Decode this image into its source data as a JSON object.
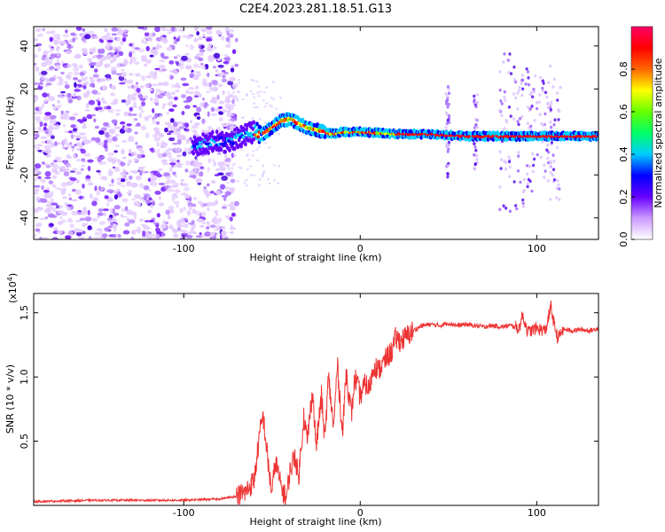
{
  "figure": {
    "title": "C2E4.2023.281.18.51.G13"
  },
  "chart_data": [
    {
      "type": "heatmap",
      "xlabel": "Height of straight line (km)",
      "ylabel": "Frequency (Hz)",
      "xlim": [
        -185,
        135
      ],
      "ylim": [
        -50,
        49
      ],
      "xticks": [
        -100,
        0,
        100
      ],
      "yticks": [
        -40,
        -20,
        0,
        20,
        40
      ],
      "ridge": {
        "x": [
          -90,
          -80,
          -75,
          -70,
          -65,
          -60,
          -55,
          -50,
          -45,
          -40,
          -35,
          -30,
          -25,
          -20,
          -15,
          -10,
          -5,
          0,
          20,
          40,
          60,
          80,
          100,
          120,
          135
        ],
        "frequency": [
          -6,
          -4,
          -5,
          -3,
          -1,
          0,
          -1,
          2,
          5,
          6,
          4,
          2,
          1,
          0,
          -1,
          0,
          0,
          0,
          -1,
          -1,
          -2,
          -2,
          -2,
          -2,
          -2
        ]
      },
      "colorbar": {
        "label": "Normalized spectral amplitude",
        "range": [
          0,
          1
        ],
        "ticks": [
          0.0,
          0.2,
          0.4,
          0.6,
          0.8
        ],
        "colors": [
          "#ffffff",
          "#cc99ff",
          "#6600ff",
          "#0000ff",
          "#00ccff",
          "#00ff66",
          "#66ff00",
          "#ffff00",
          "#ff6600",
          "#ff0000",
          "#ff0066"
        ]
      }
    },
    {
      "type": "line",
      "xlabel": "Height of straight line (km)",
      "ylabel": "SNR (10 * v/v)",
      "yscale_label": "(x10",
      "yscale_exp": "4",
      "yscale_close": ")",
      "xlim": [
        -185,
        135
      ],
      "ylim": [
        0,
        1.65
      ],
      "xticks": [
        -100,
        0,
        100
      ],
      "yticks": [
        0.5,
        1.0,
        1.5
      ],
      "color": "#ee3333",
      "series": [
        {
          "x": [
            -185,
            -150,
            -100,
            -80,
            -70,
            -65,
            -60,
            -57,
            -55,
            -52,
            -50,
            -48,
            -45,
            -42,
            -40,
            -37,
            -35,
            -32,
            -30,
            -27,
            -25,
            -22,
            -20,
            -18,
            -15,
            -13,
            -10,
            -8,
            -5,
            -3,
            0,
            3,
            5,
            8,
            10,
            13,
            15,
            18,
            20,
            23,
            25,
            30,
            35,
            40,
            45,
            50,
            55,
            60,
            65,
            70,
            75,
            80,
            85,
            90,
            92,
            95,
            100,
            105,
            108,
            110,
            112,
            115,
            120,
            125,
            130,
            135
          ],
          "y": [
            0.03,
            0.04,
            0.04,
            0.05,
            0.07,
            0.1,
            0.2,
            0.55,
            0.7,
            0.3,
            0.1,
            0.35,
            0.15,
            0.05,
            0.25,
            0.4,
            0.2,
            0.7,
            0.5,
            0.9,
            0.45,
            0.85,
            0.5,
            1.0,
            0.6,
            1.1,
            0.55,
            1.05,
            0.7,
            1.0,
            0.85,
            0.95,
            0.9,
            1.1,
            1.05,
            1.1,
            1.15,
            1.2,
            1.3,
            1.28,
            1.3,
            1.36,
            1.4,
            1.41,
            1.4,
            1.42,
            1.4,
            1.41,
            1.4,
            1.39,
            1.4,
            1.39,
            1.4,
            1.38,
            1.48,
            1.35,
            1.38,
            1.36,
            1.55,
            1.4,
            1.3,
            1.37,
            1.36,
            1.37,
            1.36,
            1.38
          ]
        }
      ]
    }
  ]
}
